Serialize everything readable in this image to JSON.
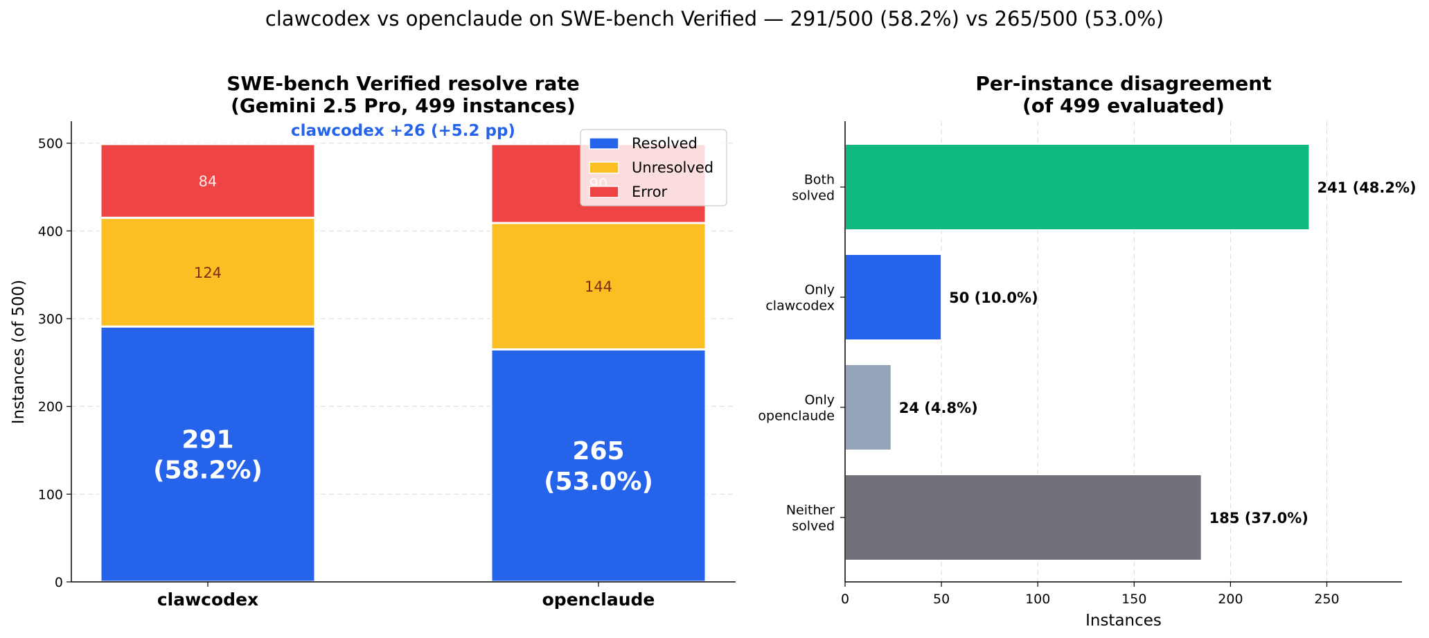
{
  "suptitle": "clawcodex vs openclaude on SWE-bench Verified — 291/500 (58.2%) vs 265/500 (53.0%)",
  "colors": {
    "resolved": "#2563eb",
    "unresolved": "#fbbf24",
    "error": "#ef4444",
    "both_solved": "#10b981",
    "only_clawcodex": "#2563eb",
    "only_openclaude": "#94a3b8",
    "neither": "#71717a"
  },
  "chart_data": [
    {
      "type": "bar",
      "stacked": true,
      "title": [
        "SWE-bench Verified resolve rate",
        "(Gemini 2.5 Pro, 499 instances)"
      ],
      "annotation": "clawcodex +26 (+5.2 pp)",
      "xlabel": "",
      "ylabel": "Instances (of 500)",
      "ylim": [
        0,
        525
      ],
      "yticks": [
        0,
        100,
        200,
        300,
        400,
        500
      ],
      "grid": true,
      "legend": "top-right",
      "categories": [
        "clawcodex",
        "openclaude"
      ],
      "series": [
        {
          "name": "Resolved",
          "values": [
            291,
            265
          ],
          "labels": [
            "291\n(58.2%)",
            "265\n(53.0%)"
          ]
        },
        {
          "name": "Unresolved",
          "values": [
            124,
            144
          ],
          "labels": [
            "124",
            "144"
          ]
        },
        {
          "name": "Error",
          "values": [
            84,
            90
          ],
          "labels": [
            "84",
            "90"
          ]
        }
      ]
    },
    {
      "type": "bar",
      "orientation": "horizontal",
      "title": [
        "Per-instance disagreement",
        "(of 499 evaluated)"
      ],
      "xlabel": "Instances",
      "ylabel": "",
      "xlim": [
        0,
        289
      ],
      "xticks": [
        0,
        50,
        100,
        150,
        200,
        250
      ],
      "grid": true,
      "categories": [
        "Both\nsolved",
        "Only\nclawcodex",
        "Only\nopenclaude",
        "Neither\nsolved"
      ],
      "values": [
        241,
        50,
        24,
        185
      ],
      "labels": [
        "241 (48.2%)",
        "50 (10.0%)",
        "24 (4.8%)",
        "185 (37.0%)"
      ]
    }
  ]
}
